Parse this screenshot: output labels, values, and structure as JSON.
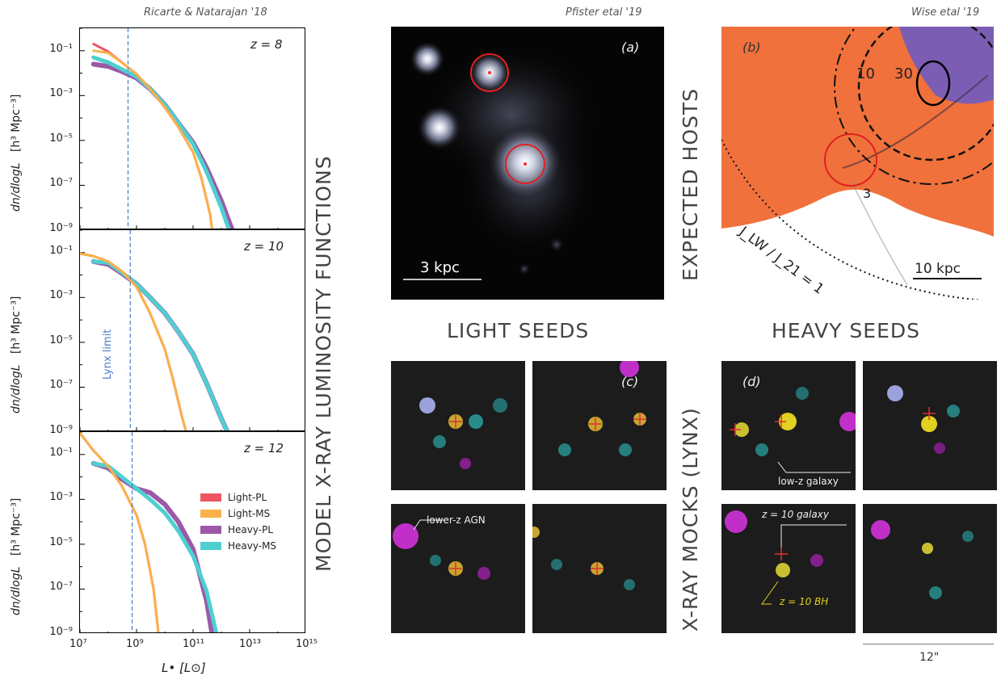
{
  "credits": {
    "left": "Ricarte & Natarajan '18",
    "middle": "Pfister etal '19",
    "right": "Wise etal '19"
  },
  "section_labels": {
    "model_functions": "MODEL X-RAY LUMINOSITY  FUNCTIONS",
    "expected_hosts": "EXPECTED  HOSTS",
    "light_seeds": "LIGHT SEEDS",
    "heavy_seeds": "HEAVY SEEDS",
    "xray_mocks": "X-RAY  MOCKS (LYNX)"
  },
  "panel_tags": {
    "a": "(a)",
    "b": "(b)",
    "c": "(c)",
    "d": "(d)"
  },
  "scalebars": {
    "pfister": "3 kpc",
    "wise": "10 kpc",
    "mocks": "12\""
  },
  "wise_labels": {
    "c10": "10",
    "c30": "30",
    "c3": "3",
    "jlw": "J_LW / J_21 = 1"
  },
  "mock_annotations": {
    "low_z_galaxy": "low-z galaxy",
    "lower_z_agn": "lower-z AGN",
    "z10_galaxy": "z = 10  galaxy",
    "z10_bh": "z = 10  BH"
  },
  "colors": {
    "light_pl": "#ef5560",
    "light_ms": "#fbb14a",
    "heavy_pl": "#9b59a8",
    "heavy_ms": "#4ecfd0",
    "lynx": "#4a7ec8",
    "wise_orange": "#f0713c",
    "wise_purple": "#7b5eb3",
    "circle_red": "#e02020"
  },
  "chart_data": [
    {
      "type": "line",
      "panel": "z = 8",
      "xlabel": "L• [L⊙]",
      "ylabel": "dn/dlogL   [h³ Mpc⁻³]",
      "xscale": "log",
      "yscale": "log",
      "xlim": [
        10000000.0,
        1000000000000000.0
      ],
      "ylim": [
        1e-09,
        1.0
      ],
      "lynx_limit": 500000000.0,
      "series": [
        {
          "name": "Light-PL",
          "x": [
            30000000.0,
            100000000.0,
            300000000.0,
            1000000000.0,
            3000000000.0,
            10000000000.0,
            30000000000.0,
            100000000000.0,
            200000000000.0,
            400000000000.0,
            600000000000.0
          ],
          "y": [
            0.2,
            0.09,
            0.03,
            0.009,
            0.002,
            0.0003,
            4e-05,
            3e-06,
            2e-07,
            5e-09,
            1e-10
          ]
        },
        {
          "name": "Light-MS",
          "x": [
            30000000.0,
            100000000.0,
            300000000.0,
            1000000000.0,
            3000000000.0,
            10000000000.0,
            30000000000.0,
            100000000000.0,
            200000000000.0,
            400000000000.0,
            600000000000.0
          ],
          "y": [
            0.1,
            0.08,
            0.03,
            0.009,
            0.002,
            0.0003,
            4e-05,
            3e-06,
            2e-07,
            5e-09,
            1e-10
          ]
        },
        {
          "name": "Heavy-PL",
          "x": [
            30000000.0,
            100000000.0,
            300000000.0,
            1000000000.0,
            3000000000.0,
            10000000000.0,
            30000000000.0,
            100000000000.0,
            300000000000.0,
            1000000000000.0,
            3000000000000.0
          ],
          "y": [
            0.025,
            0.02,
            0.012,
            0.006,
            0.002,
            0.0004,
            6e-05,
            8e-06,
            6e-07,
            2e-08,
            5e-10
          ]
        },
        {
          "name": "Heavy-MS",
          "x": [
            30000000.0,
            100000000.0,
            300000000.0,
            1000000000.0,
            3000000000.0,
            10000000000.0,
            30000000000.0,
            100000000000.0,
            300000000000.0,
            1000000000000.0,
            2000000000000.0
          ],
          "y": [
            0.05,
            0.03,
            0.015,
            0.007,
            0.002,
            0.0004,
            6e-05,
            7e-06,
            4e-07,
            1e-08,
            8e-10
          ]
        }
      ]
    },
    {
      "type": "line",
      "panel": "z = 10",
      "xlabel": "L• [L⊙]",
      "ylabel": "dn/dlogL   [h³ Mpc⁻³]",
      "xscale": "log",
      "yscale": "log",
      "xlim": [
        10000000.0,
        1000000000000000.0
      ],
      "ylim": [
        1e-09,
        1.0
      ],
      "lynx_limit": 600000000.0,
      "lynx_label": "Lynx limit",
      "series": [
        {
          "name": "Light-PL",
          "x": [
            10000000.0,
            30000000.0,
            100000000.0,
            300000000.0,
            1000000000.0,
            3000000000.0,
            10000000000.0,
            20000000000.0,
            40000000000.0,
            60000000000.0
          ],
          "y": [
            0.09,
            0.07,
            0.04,
            0.015,
            0.003,
            0.0002,
            5e-06,
            2e-07,
            5e-09,
            8e-10
          ]
        },
        {
          "name": "Light-MS",
          "x": [
            10000000.0,
            30000000.0,
            100000000.0,
            300000000.0,
            1000000000.0,
            3000000000.0,
            10000000000.0,
            20000000000.0,
            40000000000.0,
            60000000000.0
          ],
          "y": [
            0.09,
            0.07,
            0.04,
            0.015,
            0.003,
            0.0002,
            5e-06,
            2e-07,
            5e-09,
            8e-10
          ]
        },
        {
          "name": "Heavy-PL",
          "x": [
            30000000.0,
            100000000.0,
            300000000.0,
            1000000000.0,
            3000000000.0,
            10000000000.0,
            30000000000.0,
            100000000000.0,
            300000000000.0,
            1000000000000.0,
            2000000000000.0
          ],
          "y": [
            0.04,
            0.03,
            0.012,
            0.004,
            0.001,
            0.0002,
            3e-05,
            3e-06,
            1.5e-07,
            4e-09,
            6e-10
          ]
        },
        {
          "name": "Heavy-MS",
          "x": [
            30000000.0,
            100000000.0,
            300000000.0,
            1000000000.0,
            3000000000.0,
            10000000000.0,
            30000000000.0,
            100000000000.0,
            300000000000.0,
            1000000000000.0,
            2000000000000.0
          ],
          "y": [
            0.04,
            0.035,
            0.013,
            0.004,
            0.001,
            0.0002,
            3e-05,
            3e-06,
            1.5e-07,
            4e-09,
            6e-10
          ]
        }
      ]
    },
    {
      "type": "line",
      "panel": "z = 12",
      "xlabel": "L• [L⊙]",
      "ylabel": "dn/dlogL   [h³ Mpc⁻³]",
      "xscale": "log",
      "yscale": "log",
      "xlim": [
        10000000.0,
        1000000000000000.0
      ],
      "ylim": [
        1e-09,
        1.0
      ],
      "lynx_limit": 700000000.0,
      "series": [
        {
          "name": "Light-PL",
          "x": [
            10000000.0,
            30000000.0,
            100000000.0,
            300000000.0,
            1000000000.0,
            2000000000.0,
            4000000000.0,
            6000000000.0
          ],
          "y": [
            0.9,
            0.15,
            0.03,
            0.004,
            0.0002,
            1e-05,
            1e-07,
            1e-09
          ]
        },
        {
          "name": "Light-MS",
          "x": [
            10000000.0,
            30000000.0,
            100000000.0,
            300000000.0,
            1000000000.0,
            2000000000.0,
            4000000000.0,
            6000000000.0
          ],
          "y": [
            0.9,
            0.15,
            0.03,
            0.004,
            0.0002,
            1e-05,
            1e-07,
            1e-09
          ]
        },
        {
          "name": "Heavy-PL",
          "x": [
            30000000.0,
            100000000.0,
            300000000.0,
            1000000000.0,
            3000000000.0,
            10000000000.0,
            30000000000.0,
            100000000000.0,
            300000000000.0,
            500000000000.0
          ],
          "y": [
            0.04,
            0.025,
            0.008,
            0.003,
            0.002,
            0.0006,
            0.0001,
            6e-06,
            3e-08,
            6e-10
          ]
        },
        {
          "name": "Heavy-MS",
          "x": [
            30000000.0,
            100000000.0,
            300000000.0,
            1000000000.0,
            3000000000.0,
            10000000000.0,
            30000000000.0,
            100000000000.0,
            300000000000.0,
            700000000000.0
          ],
          "y": [
            0.04,
            0.03,
            0.01,
            0.003,
            0.001,
            0.00025,
            4e-05,
            3e-06,
            8e-08,
            8e-10
          ]
        }
      ],
      "legend": [
        "Light-PL",
        "Light-MS",
        "Heavy-PL",
        "Heavy-MS"
      ],
      "legend_position": "center-right"
    }
  ],
  "axis_text": {
    "yticks": [
      "10⁻¹",
      "10⁻³",
      "10⁻⁵",
      "10⁻⁷",
      "10⁻⁹"
    ],
    "xticks": [
      "10⁷",
      "10⁹",
      "10¹¹",
      "10¹³",
      "10¹⁵"
    ],
    "ylabel_main": "dn/dlogL",
    "ylabel_unit": "[h³ Mpc⁻³]",
    "xlabel": "L• [L⊙]"
  }
}
